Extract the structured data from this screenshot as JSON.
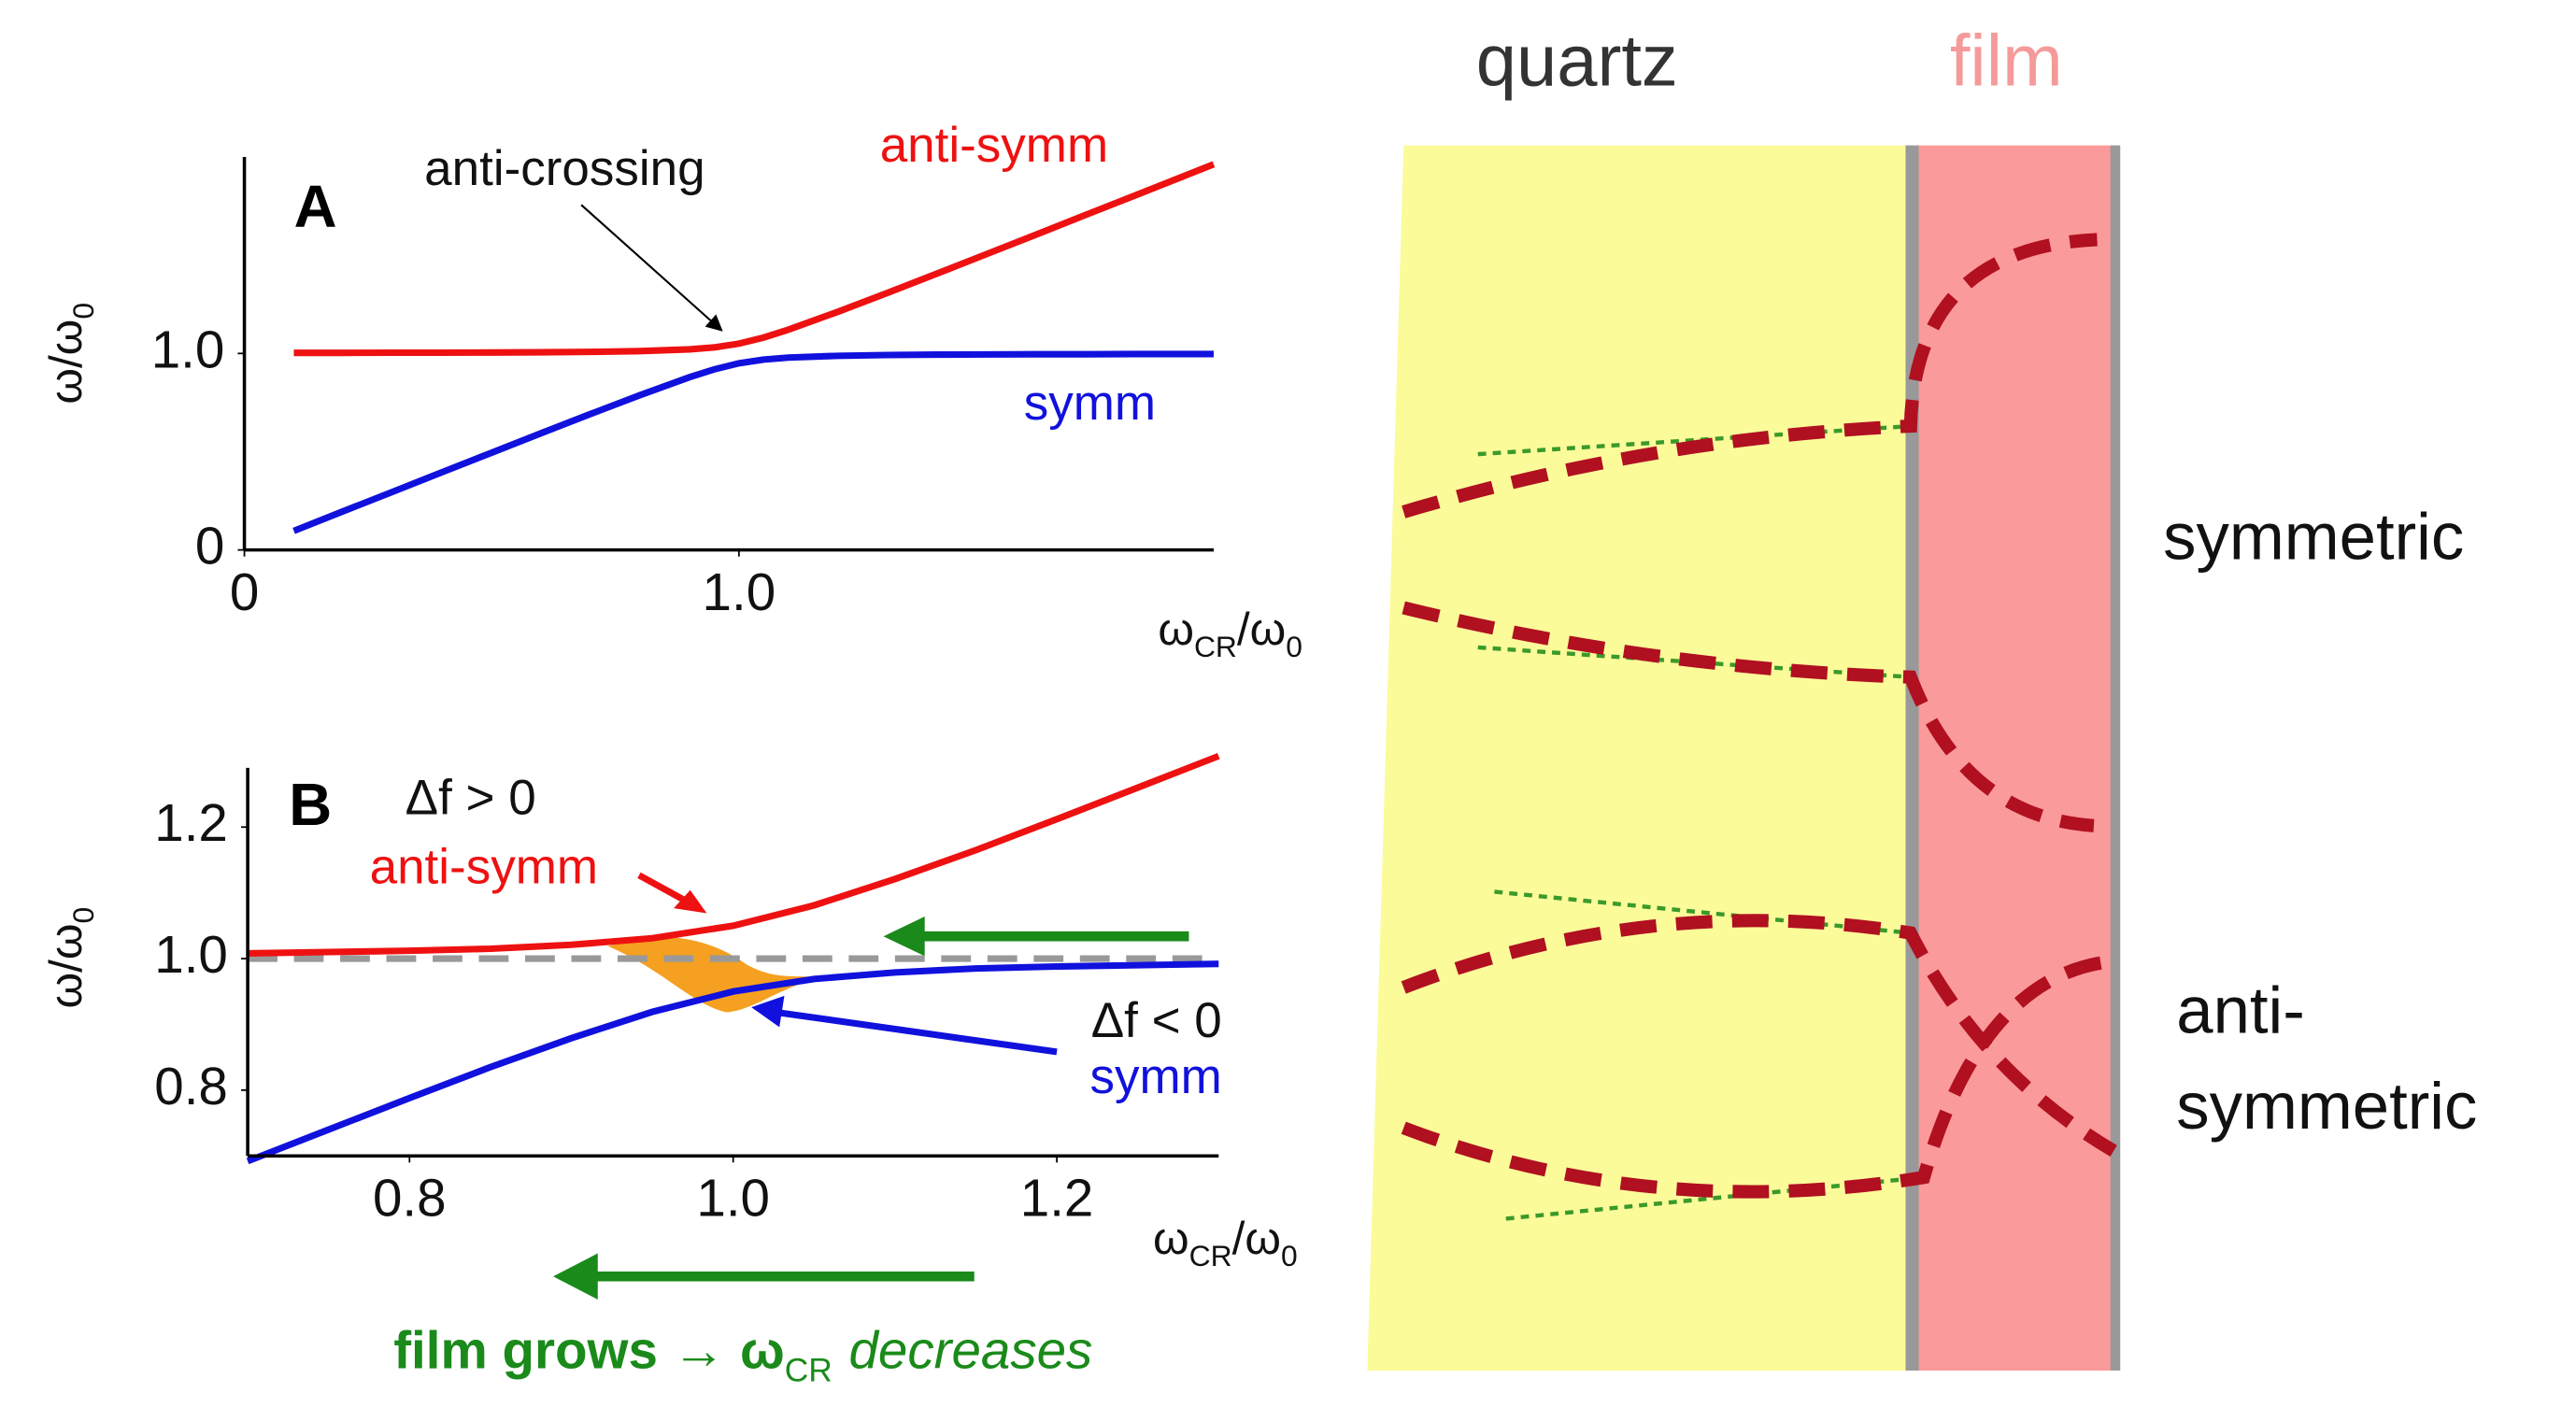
{
  "chart_data": [
    {
      "type": "line",
      "panel_label": "A",
      "xlabel": [
        "ω",
        "CR",
        "/ω",
        "0"
      ],
      "ylabel": [
        "ω/ω",
        "0"
      ],
      "annotations": {
        "crossing": "anti-crossing"
      },
      "x": [
        0.1,
        0.2,
        0.3,
        0.4,
        0.5,
        0.6,
        0.7,
        0.8,
        0.9,
        0.95,
        1.0,
        1.05,
        1.1,
        1.2,
        1.3,
        1.4,
        1.5,
        1.6,
        1.7,
        1.8,
        1.9,
        1.96
      ],
      "series": [
        {
          "name": "anti-symm",
          "color": "#ee1111",
          "values": [
            1.003,
            1.003,
            1.004,
            1.004,
            1.005,
            1.006,
            1.008,
            1.012,
            1.021,
            1.031,
            1.05,
            1.081,
            1.121,
            1.212,
            1.308,
            1.406,
            1.505,
            1.604,
            1.704,
            1.803,
            1.903,
            1.963
          ]
        },
        {
          "name": "symm",
          "color": "#1111dd",
          "values": [
            0.097,
            0.197,
            0.296,
            0.396,
            0.495,
            0.594,
            0.692,
            0.788,
            0.879,
            0.919,
            0.95,
            0.969,
            0.979,
            0.988,
            0.992,
            0.994,
            0.995,
            0.996,
            0.996,
            0.997,
            0.997,
            0.997
          ]
        }
      ],
      "xlim": [
        0,
        1.96
      ],
      "ylim": [
        0,
        2.0
      ],
      "xticks": [
        0,
        {
          "value": 1,
          "label": "1.0"
        }
      ],
      "yticks": [
        0,
        {
          "value": 1,
          "label": "1.0"
        }
      ]
    },
    {
      "type": "line",
      "panel_label": "B",
      "xlabel": [
        "ω",
        "CR",
        "/ω",
        "0"
      ],
      "ylabel": [
        "ω/ω",
        "0"
      ],
      "annotations": {
        "positive": "Δf > 0",
        "negative": "Δf < 0",
        "caption": [
          "film grows → ω",
          "CR",
          "decreases"
        ]
      },
      "x": [
        0.7,
        0.75,
        0.8,
        0.85,
        0.9,
        0.95,
        1.0,
        1.05,
        1.1,
        1.15,
        1.2,
        1.25,
        1.3
      ],
      "series": [
        {
          "name": "anti-symm",
          "color": "#ee1111",
          "values": [
            1.008,
            1.01,
            1.012,
            1.015,
            1.021,
            1.031,
            1.05,
            1.081,
            1.121,
            1.165,
            1.212,
            1.26,
            1.308
          ]
        },
        {
          "name": "symm",
          "color": "#1111dd",
          "values": [
            0.692,
            0.74,
            0.788,
            0.835,
            0.879,
            0.919,
            0.95,
            0.969,
            0.979,
            0.985,
            0.988,
            0.99,
            0.992
          ]
        }
      ],
      "hline": 1,
      "xlim": [
        0.7,
        1.3
      ],
      "ylim": [
        0.7,
        1.29
      ],
      "xticks": [
        0.8,
        {
          "value": 1,
          "label": "1.0"
        },
        1.2
      ],
      "yticks": [
        0.8,
        {
          "value": 1,
          "label": "1.0"
        },
        1.2
      ]
    }
  ],
  "diagram": {
    "quartz": "quartz",
    "film": "film",
    "symmetric": "symmetric",
    "antisymmetric_lines": [
      "anti-",
      "symmetric"
    ]
  }
}
